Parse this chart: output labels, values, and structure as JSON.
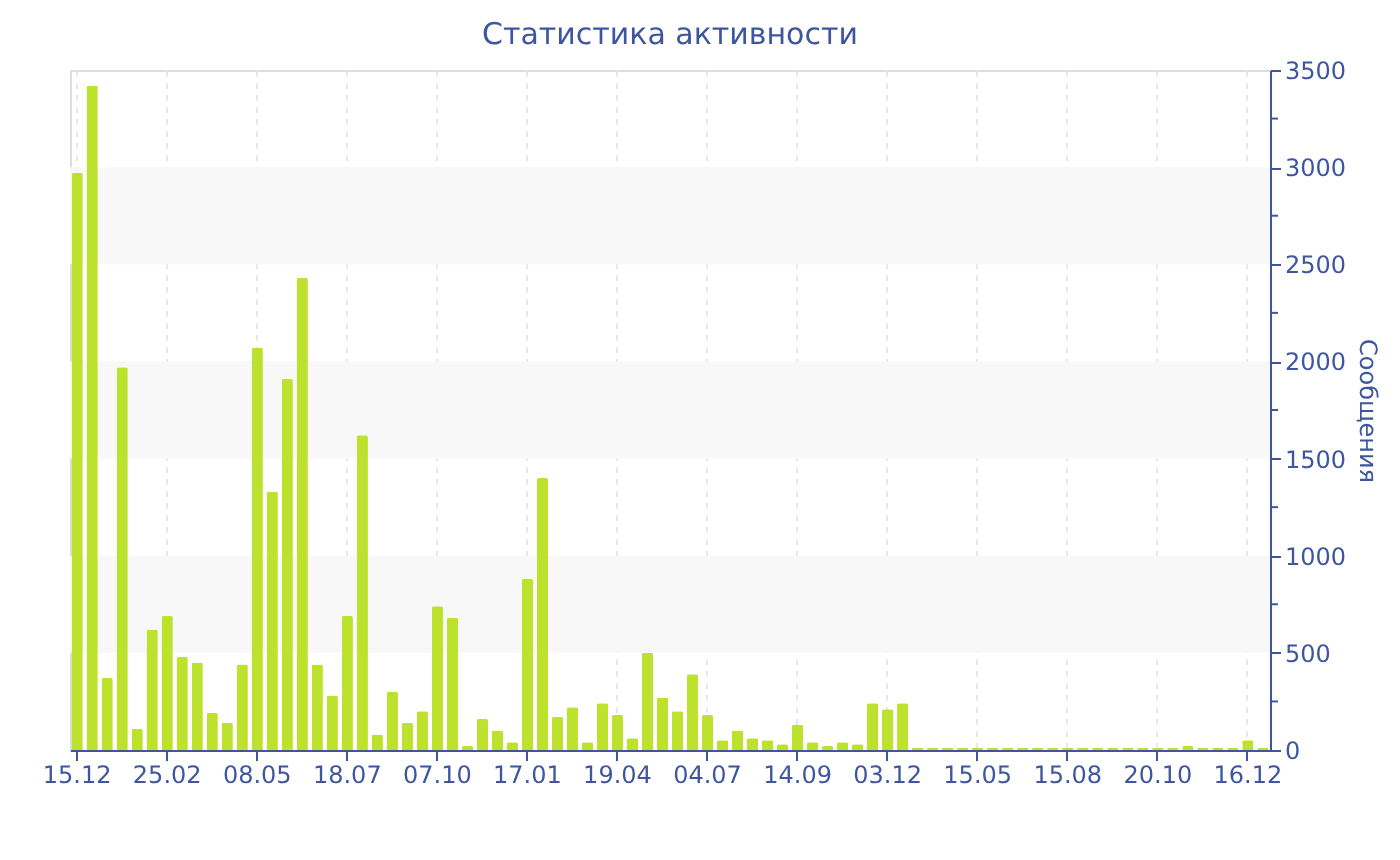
{
  "chart_data": {
    "type": "bar",
    "title": "Статистика активности",
    "ylabel": "Сообщения",
    "categories": [
      "15.12",
      null,
      null,
      null,
      null,
      null,
      "25.02",
      null,
      null,
      null,
      null,
      null,
      "08.05",
      null,
      null,
      null,
      null,
      null,
      "18.07",
      null,
      null,
      null,
      null,
      null,
      "07.10",
      null,
      null,
      null,
      null,
      null,
      "17.01",
      null,
      null,
      null,
      null,
      null,
      "19.04",
      null,
      null,
      null,
      null,
      null,
      "04.07",
      null,
      null,
      null,
      null,
      null,
      "14.09",
      null,
      null,
      null,
      null,
      null,
      "03.12",
      null,
      null,
      null,
      null,
      null,
      "15.05",
      null,
      null,
      null,
      null,
      null,
      "15.08",
      null,
      null,
      null,
      null,
      null,
      "20.10",
      null,
      null,
      null,
      null,
      null,
      "16.12",
      null
    ],
    "series": [
      {
        "color": "#bde22e",
        "values": [
          2970,
          3420,
          370,
          1970,
          110,
          620,
          690,
          480,
          450,
          190,
          140,
          440,
          2070,
          1330,
          1910,
          2430,
          440,
          280,
          690,
          1620,
          80,
          300,
          140,
          200,
          740,
          680,
          20,
          160,
          100,
          40,
          880,
          1400,
          170,
          220,
          40,
          240,
          180,
          60,
          500,
          270,
          200,
          390,
          180,
          50,
          100,
          60,
          50,
          30,
          130,
          40,
          20,
          40,
          30,
          240,
          210,
          240,
          10,
          10,
          10,
          10,
          10,
          10,
          10,
          10,
          10,
          10,
          10,
          10,
          10,
          10,
          10,
          10,
          10,
          10,
          20,
          10,
          10,
          10,
          50,
          10
        ]
      }
    ],
    "ylim": [
      0,
      3500
    ],
    "yticks": [
      0,
      {
        "value": 250,
        "label": null
      },
      500,
      {
        "value": 750,
        "label": null
      },
      1000,
      {
        "value": 1250,
        "label": null
      },
      1500,
      {
        "value": 1750,
        "label": null
      },
      2000,
      {
        "value": 2250,
        "label": null
      },
      2500,
      {
        "value": 2750,
        "label": null
      },
      3000,
      {
        "value": 3250,
        "label": null
      },
      3500
    ],
    "bands": [
      {
        "axis": "y",
        "from": 500,
        "to": 1000,
        "color": "#f8f8f8"
      },
      {
        "axis": "y",
        "from": 1500,
        "to": 2000,
        "color": "#f8f8f8"
      },
      {
        "axis": "y",
        "from": 2500,
        "to": 3000,
        "color": "#f8f8f8"
      }
    ],
    "grid": "x"
  }
}
